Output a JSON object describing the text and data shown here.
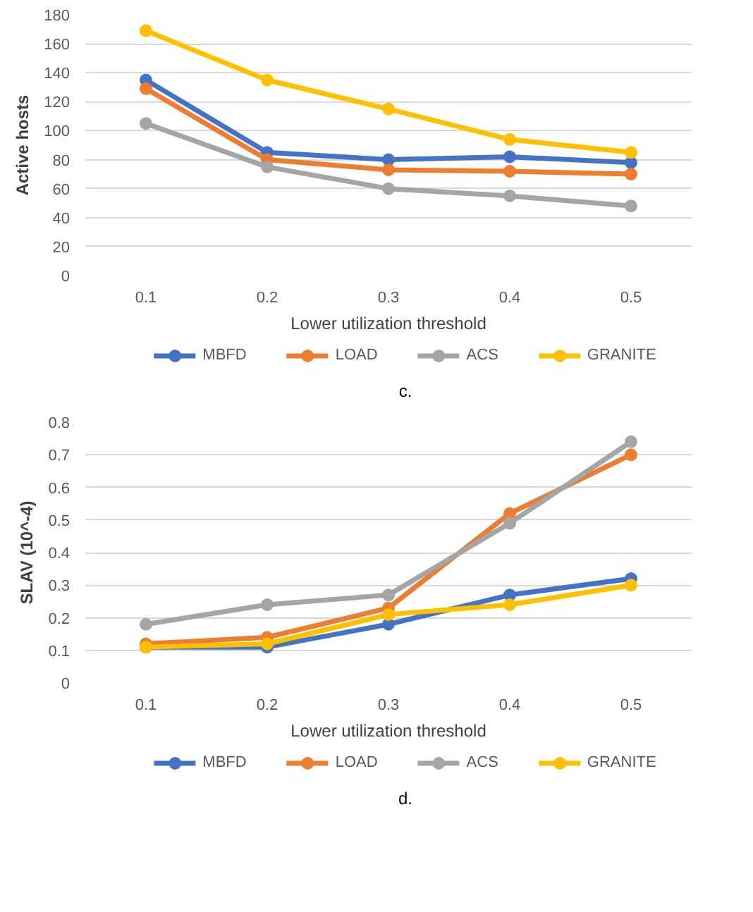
{
  "chart_data": [
    {
      "type": "line",
      "xlabel": "Lower utilization threshold",
      "ylabel": "Active hosts",
      "categories": [
        "0.1",
        "0.2",
        "0.3",
        "0.4",
        "0.5"
      ],
      "ylim": [
        0,
        180
      ],
      "yticks": [
        0,
        20,
        40,
        60,
        80,
        100,
        120,
        140,
        160,
        180
      ],
      "grid": "y",
      "legend": "bottom",
      "marker": "circle",
      "line_style": "solid",
      "annotations": [
        "c."
      ],
      "series": [
        {
          "name": "MBFD",
          "color": "#4472c4",
          "values": [
            135,
            85,
            80,
            82,
            78
          ]
        },
        {
          "name": "LOAD",
          "color": "#ed7d31",
          "values": [
            129,
            80,
            73,
            72,
            70
          ]
        },
        {
          "name": "ACS",
          "color": "#a5a5a5",
          "values": [
            105,
            75,
            60,
            55,
            48
          ]
        },
        {
          "name": "GRANITE",
          "color": "#ffc000",
          "values": [
            169,
            135,
            115,
            94,
            85
          ]
        }
      ]
    },
    {
      "type": "line",
      "xlabel": "Lower utilization threshold",
      "ylabel": "SLAV (10^-4)",
      "categories": [
        "0.1",
        "0.2",
        "0.3",
        "0.4",
        "0.5"
      ],
      "ylim": [
        0,
        0.8
      ],
      "yticks": [
        0,
        0.1,
        0.2,
        0.3,
        0.4,
        0.5,
        0.6,
        0.7,
        0.8
      ],
      "grid": "y",
      "legend": "bottom",
      "marker": "circle",
      "line_style": "solid",
      "annotations": [
        "d."
      ],
      "series": [
        {
          "name": "MBFD",
          "color": "#4472c4",
          "values": [
            0.11,
            0.11,
            0.18,
            0.27,
            0.32
          ]
        },
        {
          "name": "LOAD",
          "color": "#ed7d31",
          "values": [
            0.12,
            0.14,
            0.23,
            0.52,
            0.7
          ]
        },
        {
          "name": "ACS",
          "color": "#a5a5a5",
          "values": [
            0.18,
            0.24,
            0.27,
            0.49,
            0.74
          ]
        },
        {
          "name": "GRANITE",
          "color": "#ffc000",
          "values": [
            0.11,
            0.12,
            0.21,
            0.24,
            0.3
          ]
        }
      ]
    }
  ]
}
